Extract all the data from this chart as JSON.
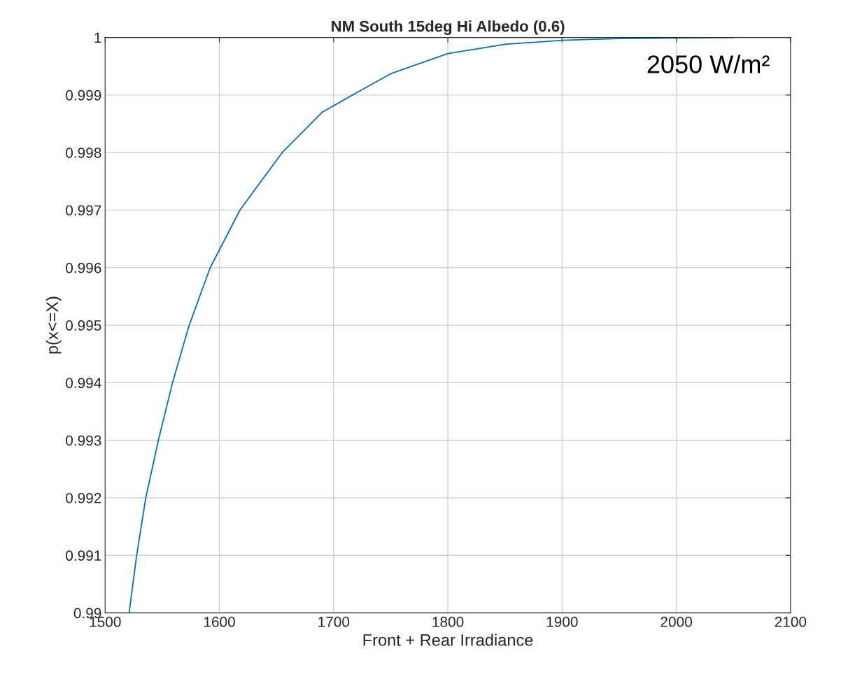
{
  "chart_data": {
    "type": "line",
    "title": "NM South 15deg Hi Albedo (0.6)",
    "xlabel": "Front + Rear Irradiance",
    "ylabel": "p(x<=X)",
    "annotations": [
      "2050 W/m²"
    ],
    "series": [
      {
        "color": "#0072bd",
        "x": [
          1521,
          1527.6,
          1535.6,
          1546.6,
          1559,
          1573.6,
          1592,
          1618,
          1655,
          1690,
          1716.6,
          1750,
          1800,
          1850,
          1900,
          1950,
          2000,
          2050
        ],
        "values": [
          0.99,
          0.991,
          0.992,
          0.993,
          0.994,
          0.995,
          0.996,
          0.997,
          0.998,
          0.9987,
          0.999,
          0.99937,
          0.99972,
          0.99988,
          0.99995,
          0.99998,
          0.99999,
          1.0
        ]
      }
    ],
    "xlim": [
      1500,
      2100
    ],
    "xticks": [
      1500,
      1600,
      1700,
      1800,
      1900,
      2000,
      2100
    ],
    "ylim": [
      0.99,
      1
    ],
    "yticks": [
      0.99,
      0.991,
      0.992,
      0.993,
      0.994,
      0.995,
      0.996,
      0.997,
      0.998,
      0.999,
      1
    ],
    "grid": true,
    "line_style": "solid",
    "marker": "none"
  }
}
